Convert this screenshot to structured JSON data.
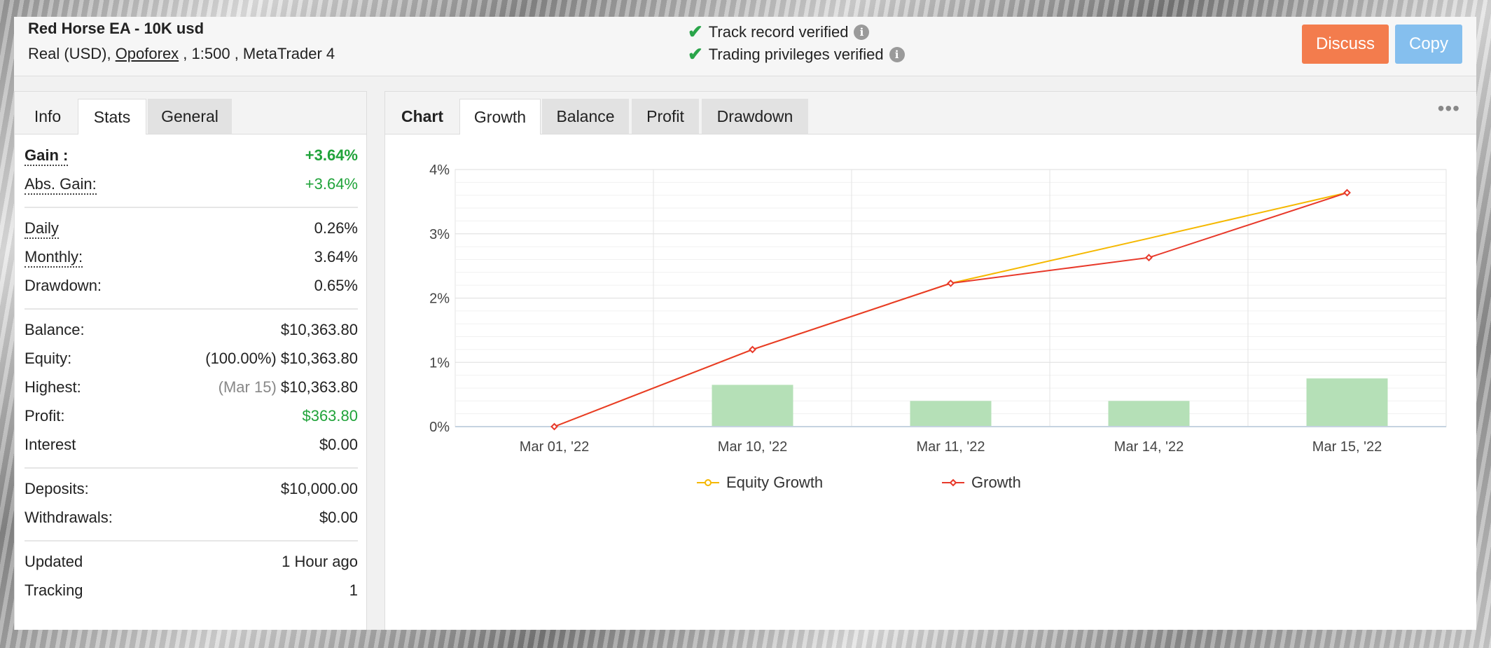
{
  "account": {
    "title": "Red Horse EA - 10K usd",
    "sub_prefix": "Real (USD), ",
    "broker": "Opoforex",
    "sub_suffix": " , 1:500 , MetaTrader 4"
  },
  "verification": {
    "track_record": "Track record verified",
    "trading_privileges": "Trading privileges verified"
  },
  "actions": {
    "discuss": "Discuss",
    "copy": "Copy"
  },
  "left_tabs": [
    "Info",
    "Stats",
    "General"
  ],
  "stats": {
    "gain": {
      "label": "Gain :",
      "value": "+3.64%"
    },
    "abs_gain": {
      "label": "Abs. Gain:",
      "value": "+3.64%"
    },
    "daily": {
      "label": "Daily",
      "value": "0.26%"
    },
    "monthly": {
      "label": "Monthly:",
      "value": "3.64%"
    },
    "drawdown": {
      "label": "Drawdown:",
      "value": "0.65%"
    },
    "balance": {
      "label": "Balance:",
      "value": "$10,363.80"
    },
    "equity": {
      "label": "Equity:",
      "note": "(100.00%)",
      "value": "$10,363.80"
    },
    "highest": {
      "label": "Highest:",
      "note": "(Mar 15)",
      "value": "$10,363.80"
    },
    "profit": {
      "label": "Profit:",
      "value": "$363.80"
    },
    "interest": {
      "label": "Interest",
      "value": "$0.00"
    },
    "deposits": {
      "label": "Deposits:",
      "value": "$10,000.00"
    },
    "withdrawals": {
      "label": "Withdrawals:",
      "value": "$0.00"
    },
    "updated": {
      "label": "Updated",
      "value": "1 Hour ago"
    },
    "tracking": {
      "label": "Tracking",
      "value": "1"
    }
  },
  "right_tabs": [
    "Chart",
    "Growth",
    "Balance",
    "Profit",
    "Drawdown"
  ],
  "more_icon": "•••",
  "colors": {
    "green": "#20a33a",
    "equity_line": "#f5b800",
    "growth_line": "#e8392a",
    "bars": "#b5e0b7",
    "discuss": "#f37c4d",
    "copy": "#85bfee"
  },
  "chart_data": {
    "type": "line",
    "categories": [
      "Mar 01, '22",
      "Mar 10, '22",
      "Mar 11, '22",
      "Mar 14, '22",
      "Mar 15, '22"
    ],
    "series": [
      {
        "name": "Equity Growth",
        "values": [
          0,
          1.2,
          2.23,
          2.93,
          3.64
        ]
      },
      {
        "name": "Growth",
        "values": [
          0,
          1.2,
          2.23,
          2.63,
          3.64
        ]
      }
    ],
    "bars": [
      0,
      0.65,
      0.4,
      0.4,
      0.75
    ],
    "y_ticks": [
      "0%",
      "1%",
      "2%",
      "3%",
      "4%"
    ],
    "ylim": [
      0,
      4
    ],
    "grid": true,
    "legend": "bottom"
  }
}
